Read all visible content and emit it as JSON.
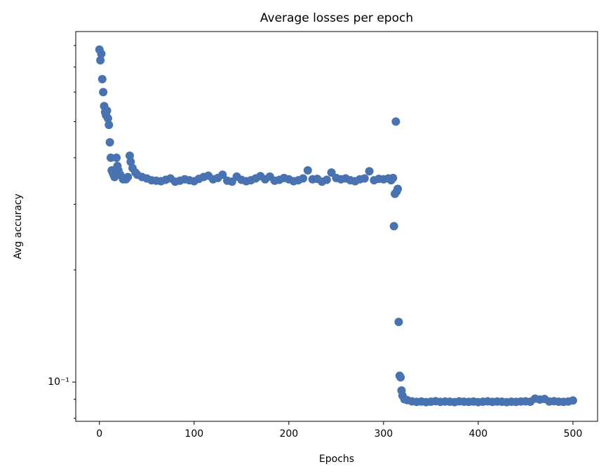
{
  "chart_data": {
    "type": "scatter",
    "title": "Average losses per epoch",
    "xlabel": "Epochs",
    "ylabel": "Avg accuracy",
    "color": "#4872b0",
    "yscale": "log",
    "xlim": [
      -25,
      526
    ],
    "xticks": [
      0,
      100,
      200,
      300,
      400,
      500
    ],
    "ylim": [
      0.0785,
      0.872
    ],
    "yticks": [
      {
        "value": 0.1,
        "label": "10⁻¹"
      }
    ],
    "yminorticks": [
      0.08,
      0.09,
      0.2,
      0.3,
      0.4,
      0.5,
      0.6,
      0.7,
      0.8
    ],
    "x": [
      0,
      1,
      2,
      3,
      4,
      5,
      6,
      7,
      8,
      9,
      10,
      11,
      12,
      13,
      14,
      15,
      16,
      17,
      18,
      19,
      20,
      22,
      25,
      28,
      30,
      32,
      33,
      35,
      38,
      40,
      45,
      50,
      55,
      60,
      65,
      70,
      75,
      80,
      85,
      90,
      95,
      100,
      105,
      110,
      115,
      120,
      125,
      130,
      135,
      140,
      145,
      150,
      155,
      160,
      165,
      170,
      175,
      180,
      185,
      190,
      195,
      200,
      205,
      210,
      215,
      220,
      225,
      230,
      235,
      240,
      245,
      250,
      255,
      260,
      265,
      270,
      275,
      280,
      285,
      290,
      295,
      300,
      305,
      308,
      310,
      311,
      312,
      313,
      314,
      315,
      316,
      317,
      318,
      319,
      320,
      322,
      325,
      330,
      335,
      340,
      345,
      350,
      355,
      360,
      365,
      370,
      375,
      380,
      385,
      390,
      395,
      400,
      405,
      410,
      415,
      420,
      425,
      430,
      435,
      440,
      445,
      450,
      455,
      460,
      465,
      470,
      475,
      480,
      485,
      490,
      495,
      500
    ],
    "values": [
      0.78,
      0.73,
      0.76,
      0.65,
      0.6,
      0.55,
      0.53,
      0.52,
      0.535,
      0.51,
      0.49,
      0.44,
      0.4,
      0.37,
      0.365,
      0.36,
      0.355,
      0.37,
      0.4,
      0.38,
      0.37,
      0.36,
      0.35,
      0.35,
      0.355,
      0.405,
      0.39,
      0.375,
      0.365,
      0.36,
      0.355,
      0.352,
      0.348,
      0.347,
      0.346,
      0.349,
      0.352,
      0.345,
      0.347,
      0.35,
      0.348,
      0.346,
      0.351,
      0.355,
      0.358,
      0.35,
      0.353,
      0.36,
      0.347,
      0.345,
      0.356,
      0.349,
      0.346,
      0.348,
      0.352,
      0.357,
      0.35,
      0.356,
      0.347,
      0.349,
      0.353,
      0.35,
      0.346,
      0.348,
      0.352,
      0.37,
      0.35,
      0.351,
      0.345,
      0.349,
      0.365,
      0.353,
      0.35,
      0.352,
      0.348,
      0.346,
      0.35,
      0.352,
      0.368,
      0.348,
      0.351,
      0.35,
      0.352,
      0.348,
      0.353,
      0.262,
      0.32,
      0.5,
      0.325,
      0.33,
      0.145,
      0.104,
      0.103,
      0.095,
      0.092,
      0.09,
      0.0895,
      0.0888,
      0.0885,
      0.0887,
      0.0884,
      0.0886,
      0.0889,
      0.0885,
      0.0887,
      0.0886,
      0.0884,
      0.0888,
      0.0886,
      0.0885,
      0.0887,
      0.0884,
      0.0886,
      0.0888,
      0.0885,
      0.0887,
      0.0886,
      0.0884,
      0.0886,
      0.0885,
      0.0887,
      0.0888,
      0.0886,
      0.0903,
      0.0898,
      0.0901,
      0.0887,
      0.0889,
      0.0886,
      0.0885,
      0.0887,
      0.0893
    ]
  }
}
